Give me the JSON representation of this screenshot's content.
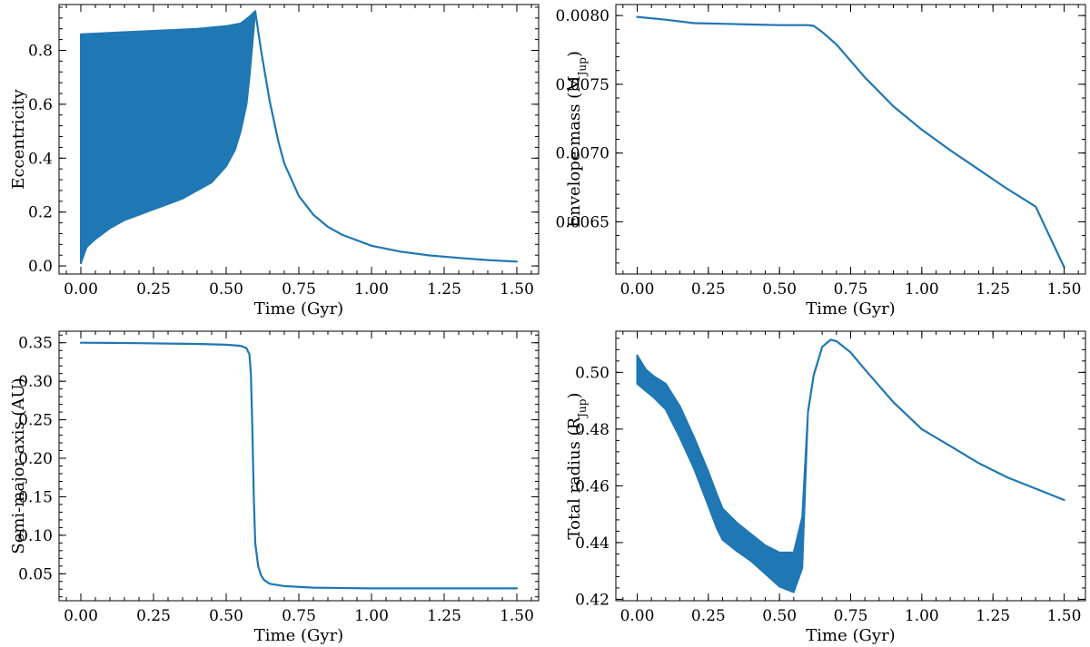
{
  "colors": {
    "series": "#1f77b4",
    "axes": "#000000"
  },
  "chart_data": [
    {
      "type": "line",
      "xlabel": "Time (Gyr)",
      "ylabel": "Eccentricity",
      "xlim": [
        -0.075,
        1.575
      ],
      "ylim": [
        -0.03,
        0.97
      ],
      "xticks": [
        "0.00",
        "0.25",
        "0.50",
        "0.75",
        "1.00",
        "1.25",
        "1.50"
      ],
      "yticks": [
        "0.0",
        "0.2",
        "0.4",
        "0.6",
        "0.8"
      ],
      "series": [
        {
          "oscillation_upper": {
            "x": [
              0.0,
              0.1,
              0.2,
              0.3,
              0.4,
              0.5,
              0.55,
              0.58,
              0.6
            ],
            "y": [
              0.86,
              0.865,
              0.87,
              0.875,
              0.88,
              0.89,
              0.9,
              0.925,
              0.945
            ]
          },
          "oscillation_lower": {
            "x": [
              0.0,
              0.02,
              0.05,
              0.1,
              0.15,
              0.2,
              0.25,
              0.3,
              0.35,
              0.4,
              0.45,
              0.5,
              0.53,
              0.55,
              0.57,
              0.58,
              0.59,
              0.6
            ],
            "y": [
              0.01,
              0.07,
              0.1,
              0.14,
              0.17,
              0.19,
              0.21,
              0.23,
              0.25,
              0.28,
              0.31,
              0.37,
              0.43,
              0.5,
              0.6,
              0.7,
              0.82,
              0.945
            ]
          },
          "decay": {
            "x": [
              0.6,
              0.62,
              0.65,
              0.68,
              0.7,
              0.75,
              0.8,
              0.85,
              0.9,
              1.0,
              1.1,
              1.2,
              1.3,
              1.4,
              1.5
            ],
            "y": [
              0.945,
              0.8,
              0.61,
              0.46,
              0.38,
              0.26,
              0.19,
              0.145,
              0.115,
              0.075,
              0.053,
              0.039,
              0.03,
              0.022,
              0.016
            ]
          }
        }
      ]
    },
    {
      "type": "line",
      "xlabel": "Time (Gyr)",
      "ylabel": "Envelope mass (M",
      "ylabel_sub": "Jup",
      "ylabel_tail": ")",
      "xlim": [
        -0.075,
        1.575
      ],
      "ylim": [
        0.00612,
        0.00808
      ],
      "xticks": [
        "0.00",
        "0.25",
        "0.50",
        "0.75",
        "1.00",
        "1.25",
        "1.50"
      ],
      "yticks": [
        "0.0065",
        "0.0070",
        "0.0075",
        "0.0080"
      ],
      "series": [
        {
          "x": [
            0.0,
            0.1,
            0.2,
            0.3,
            0.4,
            0.5,
            0.6,
            0.62,
            0.65,
            0.7,
            0.75,
            0.8,
            0.9,
            1.0,
            1.1,
            1.2,
            1.3,
            1.4,
            1.5
          ],
          "y": [
            0.00799,
            0.00797,
            0.007945,
            0.00794,
            0.007935,
            0.00793,
            0.00793,
            0.007925,
            0.00788,
            0.00779,
            0.00767,
            0.00755,
            0.00734,
            0.00717,
            0.00702,
            0.00688,
            0.00674,
            0.00661,
            0.00617
          ]
        }
      ]
    },
    {
      "type": "line",
      "xlabel": "Time (Gyr)",
      "ylabel": "Semi-major axis (AU)",
      "xlim": [
        -0.075,
        1.575
      ],
      "ylim": [
        0.015,
        0.365
      ],
      "xticks": [
        "0.00",
        "0.25",
        "0.50",
        "0.75",
        "1.00",
        "1.25",
        "1.50"
      ],
      "yticks": [
        "0.05",
        "0.10",
        "0.15",
        "0.20",
        "0.25",
        "0.30",
        "0.35"
      ],
      "series": [
        {
          "x": [
            0.0,
            0.1,
            0.2,
            0.3,
            0.4,
            0.5,
            0.55,
            0.57,
            0.58,
            0.585,
            0.59,
            0.595,
            0.6,
            0.61,
            0.62,
            0.63,
            0.65,
            0.7,
            0.8,
            1.0,
            1.5
          ],
          "y": [
            0.35,
            0.3498,
            0.3495,
            0.349,
            0.3485,
            0.3475,
            0.346,
            0.343,
            0.335,
            0.31,
            0.24,
            0.15,
            0.09,
            0.06,
            0.048,
            0.042,
            0.037,
            0.034,
            0.032,
            0.031,
            0.031
          ]
        }
      ]
    },
    {
      "type": "line",
      "xlabel": "Time (Gyr)",
      "ylabel": "Total radius (R",
      "ylabel_sub": "Jup",
      "ylabel_tail": ")",
      "xlim": [
        -0.075,
        1.575
      ],
      "ylim": [
        0.4195,
        0.5145
      ],
      "xticks": [
        "0.00",
        "0.25",
        "0.50",
        "0.75",
        "1.00",
        "1.25",
        "1.50"
      ],
      "yticks": [
        "0.42",
        "0.44",
        "0.46",
        "0.48",
        "0.50"
      ],
      "series": [
        {
          "oscillation_upper": {
            "x": [
              0.0,
              0.03,
              0.06,
              0.1,
              0.15,
              0.2,
              0.25,
              0.28,
              0.3,
              0.35,
              0.4,
              0.45,
              0.5,
              0.55,
              0.58,
              0.6
            ],
            "y": [
              0.506,
              0.501,
              0.4985,
              0.496,
              0.488,
              0.477,
              0.465,
              0.457,
              0.452,
              0.447,
              0.443,
              0.439,
              0.4365,
              0.4365,
              0.449,
              0.486
            ]
          },
          "oscillation_lower": {
            "x": [
              0.0,
              0.03,
              0.06,
              0.1,
              0.15,
              0.2,
              0.25,
              0.28,
              0.3,
              0.35,
              0.4,
              0.45,
              0.5,
              0.55,
              0.58,
              0.6
            ],
            "y": [
              0.496,
              0.4935,
              0.491,
              0.487,
              0.477,
              0.466,
              0.453,
              0.445,
              0.441,
              0.437,
              0.4335,
              0.429,
              0.4245,
              0.4225,
              0.431,
              0.486
            ]
          },
          "recovery": {
            "x": [
              0.6,
              0.62,
              0.65,
              0.68,
              0.7,
              0.75,
              0.8,
              0.9,
              1.0,
              1.1,
              1.2,
              1.3,
              1.4,
              1.5
            ],
            "y": [
              0.486,
              0.499,
              0.509,
              0.5115,
              0.511,
              0.507,
              0.501,
              0.4895,
              0.48,
              0.474,
              0.468,
              0.463,
              0.459,
              0.455
            ]
          }
        }
      ]
    }
  ]
}
